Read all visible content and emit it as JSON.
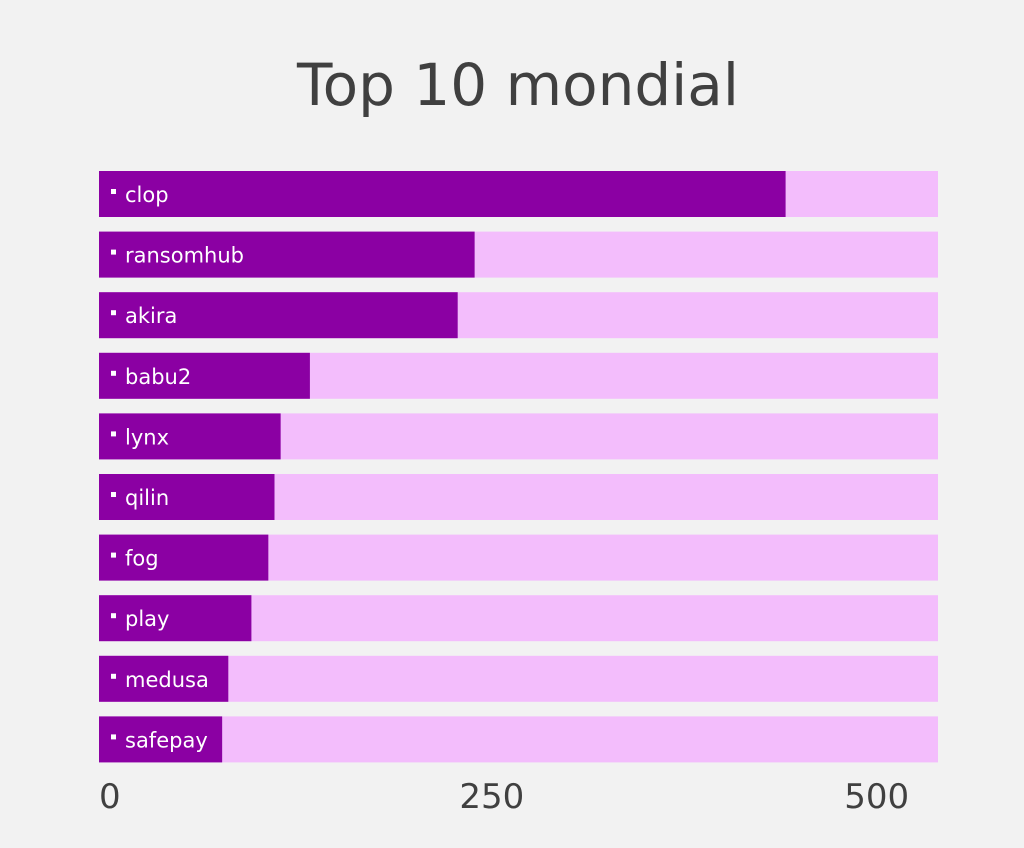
{
  "chart_data": {
    "type": "bar",
    "orientation": "horizontal",
    "title": "Top 10 mondial",
    "xlabel": "",
    "ylabel": "",
    "xlim": [
      0,
      545
    ],
    "x_ticks": [
      {
        "value": 0,
        "label": "0"
      },
      {
        "value": 250,
        "label": "250"
      },
      {
        "value": 500,
        "label": "500"
      }
    ],
    "categories": [
      "clop",
      "ransomhub",
      "akira",
      "babu2",
      "lynx",
      "qilin",
      "fog",
      "play",
      "medusa",
      "safepay"
    ],
    "values": [
      446,
      244,
      233,
      137,
      118,
      114,
      110,
      99,
      84,
      80
    ],
    "grid": false,
    "legend": "none",
    "colors": {
      "bar": "#8b00a3",
      "track": "#f3bdfc",
      "background": "#f2f2f2",
      "title": "#404040",
      "label": "#ffffff"
    }
  }
}
